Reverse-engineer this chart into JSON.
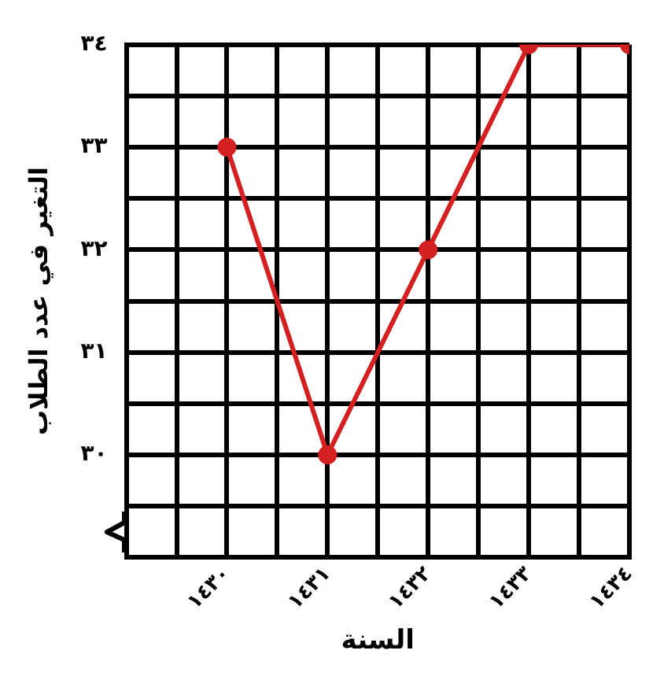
{
  "chart_data": {
    "type": "line",
    "xlabel": "السنة",
    "ylabel": "التغير في عدد الطلاب",
    "x": [
      1430,
      1431,
      1432,
      1433,
      1434
    ],
    "series": [
      {
        "color": "#d42020",
        "values": [
          33,
          30,
          32,
          34,
          34
        ]
      }
    ],
    "xlim": [
      1429,
      1434
    ],
    "xticks": [
      {
        "value": 1429,
        "label": null
      },
      {
        "value": 1429.5,
        "label": null
      },
      {
        "value": 1430,
        "label": "١٤٣٠"
      },
      {
        "value": 1430.5,
        "label": null
      },
      {
        "value": 1431,
        "label": "١٤٣١"
      },
      {
        "value": 1431.5,
        "label": null
      },
      {
        "value": 1432,
        "label": "١٤٣٢"
      },
      {
        "value": 1432.5,
        "label": null
      },
      {
        "value": 1433,
        "label": "١٤٣٣"
      },
      {
        "value": 1433.5,
        "label": null
      },
      {
        "value": 1434,
        "label": "١٤٣٤"
      }
    ],
    "ylim": [
      29,
      34
    ],
    "yticks": [
      {
        "value": 29,
        "label": null
      },
      {
        "value": 29.5,
        "label": null
      },
      {
        "value": 30,
        "label": "٣٠"
      },
      {
        "value": 30.5,
        "label": null
      },
      {
        "value": 31,
        "label": "٣١"
      },
      {
        "value": 31.5,
        "label": null
      },
      {
        "value": 32,
        "label": "٣٢"
      },
      {
        "value": 32.5,
        "label": null
      },
      {
        "value": 33,
        "label": "٣٣"
      },
      {
        "value": 33.5,
        "label": null
      },
      {
        "value": 34,
        "label": "٣٤"
      }
    ],
    "grid": true,
    "legend": false,
    "marker": "circle",
    "line_style": "solid"
  }
}
